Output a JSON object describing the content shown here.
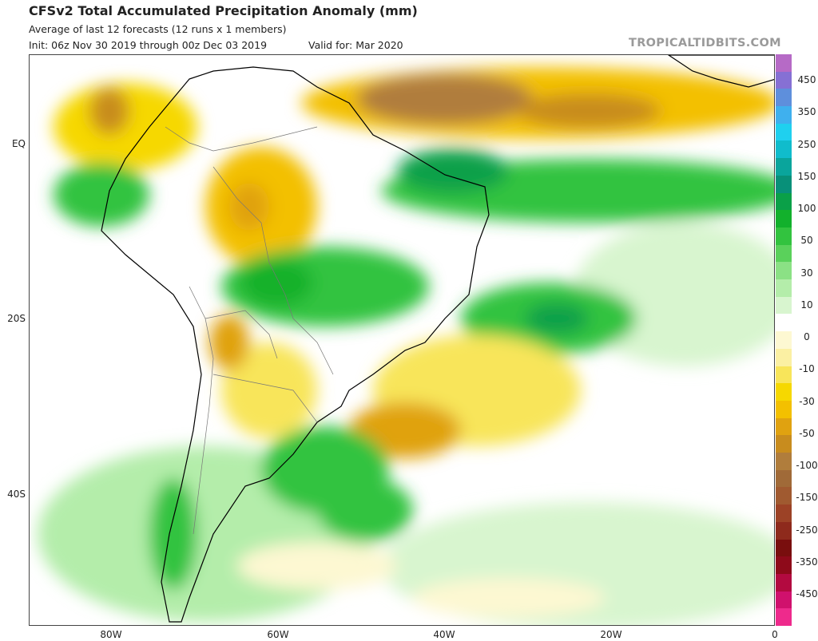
{
  "header": {
    "title": "CFSv2 Total Accumulated Precipitation Anomaly (mm)",
    "subtitle": "Average of last 12 forecasts (12 runs x 1 members)",
    "init": "Init: 06z Nov 30 2019 through 00z Dec 03 2019",
    "valid": "Valid for: Mar 2020",
    "watermark": "TROPICALTIDBITS.COM"
  },
  "axes": {
    "lat_labels": [
      "EQ",
      "20S",
      "40S"
    ],
    "lon_labels": [
      "80W",
      "60W",
      "40W",
      "20W",
      "0"
    ]
  },
  "colorbar": {
    "labels": [
      "450",
      "350",
      "250",
      "150",
      "100",
      "50",
      "30",
      "10",
      "0",
      "-10",
      "-30",
      "-50",
      "-100",
      "-150",
      "-250",
      "-350",
      "-450"
    ],
    "colors": [
      "#ee2a8c",
      "#d0116d",
      "#b30a40",
      "#8e0a1a",
      "#790e0e",
      "#8e2a1c",
      "#9c4226",
      "#a05a30",
      "#a06a38",
      "#b07d3c",
      "#c88c1e",
      "#e0a210",
      "#f3c000",
      "#f6d800",
      "#f8e55a",
      "#fbf0a3",
      "#fdf8d2",
      "#ffffff",
      "#d8f5cf",
      "#b4edaa",
      "#8be185",
      "#5ad15b",
      "#32c33f",
      "#12b12c",
      "#0aa048",
      "#089079",
      "#0aa59c",
      "#10bccc",
      "#1fd0ef",
      "#3fb0ee",
      "#5e8fdc",
      "#8670d4",
      "#b66ac6"
    ]
  },
  "map": {
    "colors": {
      "land_border": "#000000",
      "political_border": "#777777",
      "ocean": "#ffffff"
    }
  }
}
